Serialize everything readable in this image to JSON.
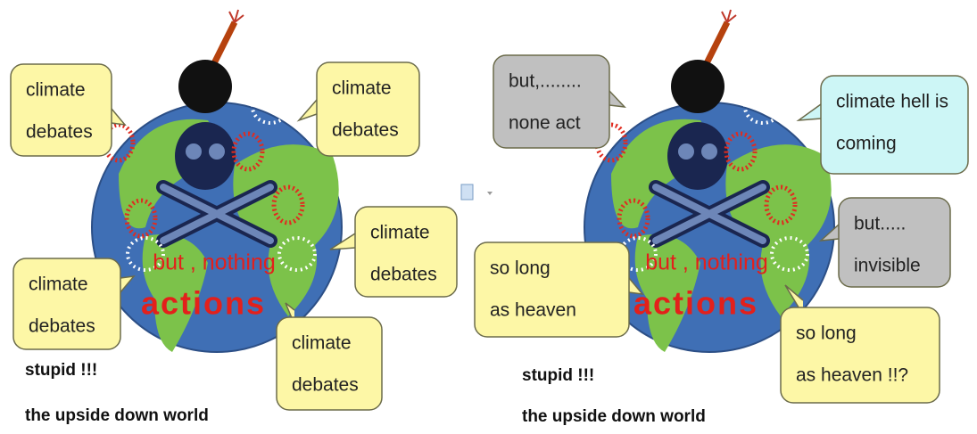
{
  "panels": [
    {
      "bubbles": [
        {
          "lines": [
            "climate",
            "debates"
          ]
        },
        {
          "lines": [
            "climate",
            "debates"
          ]
        },
        {
          "lines": [
            "climate",
            "debates"
          ]
        },
        {
          "lines": [
            "climate",
            "debates"
          ]
        },
        {
          "lines": [
            "climate",
            "debates"
          ]
        }
      ],
      "globe_text": [
        "but , nothing",
        "actions"
      ],
      "caption": [
        "stupid !!!",
        "the upside down world"
      ]
    },
    {
      "bubbles": [
        {
          "lines": [
            "but,........",
            "none act"
          ]
        },
        {
          "lines": [
            "climate hell is",
            "coming"
          ]
        },
        {
          "lines": [
            "but.....",
            "invisible"
          ]
        },
        {
          "lines": [
            "so long",
            "as heaven"
          ]
        },
        {
          "lines": [
            "so long",
            "as heaven !!?"
          ]
        }
      ],
      "globe_text": [
        "but , nothing",
        "actions"
      ],
      "caption": [
        "stupid !!!",
        "the upside down world"
      ]
    }
  ]
}
